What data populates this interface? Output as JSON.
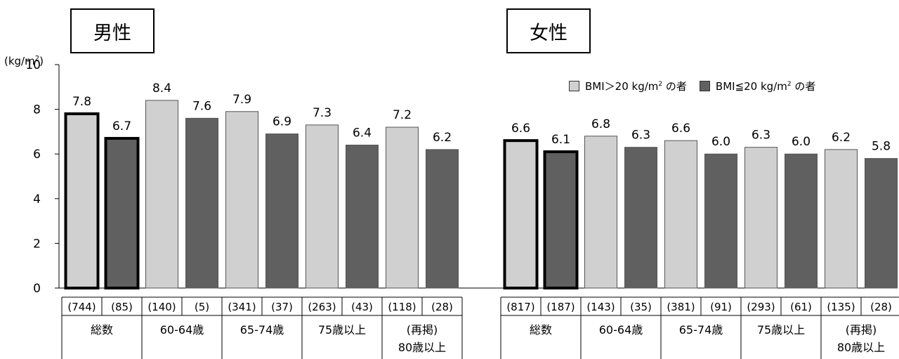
{
  "chart_data": {
    "type": "bar",
    "unit_label_main": "(kg/m",
    "unit_label_sup": "2",
    "unit_label_end": ")",
    "ylim": [
      0,
      10
    ],
    "yticks": [
      0,
      2,
      4,
      6,
      8,
      10
    ],
    "grid": false,
    "legend_position": "top-right",
    "legend": [
      {
        "name_main": "BMI＞20 kg/m",
        "name_sup": "2",
        "name_end": " の者",
        "color": "#d0d0d0"
      },
      {
        "name_main": "BMI≦20 kg/m",
        "name_sup": "2",
        "name_end": " の者",
        "color": "#606060"
      }
    ],
    "panels": [
      {
        "title": "男性",
        "groups": [
          {
            "label": [
              "総数"
            ],
            "highlight": true,
            "bars": [
              {
                "value": 7.8,
                "label": "7.8",
                "n": "(744)"
              },
              {
                "value": 6.7,
                "label": "6.7",
                "n": "(85)"
              }
            ]
          },
          {
            "label": [
              "60-64歳"
            ],
            "highlight": false,
            "bars": [
              {
                "value": 8.4,
                "label": "8.4",
                "n": "(140)"
              },
              {
                "value": 7.6,
                "label": "7.6",
                "n": "(5)"
              }
            ]
          },
          {
            "label": [
              "65-74歳"
            ],
            "highlight": false,
            "bars": [
              {
                "value": 7.9,
                "label": "7.9",
                "n": "(341)"
              },
              {
                "value": 6.9,
                "label": "6.9",
                "n": "(37)"
              }
            ]
          },
          {
            "label": [
              "75歳以上"
            ],
            "highlight": false,
            "bars": [
              {
                "value": 7.3,
                "label": "7.3",
                "n": "(263)"
              },
              {
                "value": 6.4,
                "label": "6.4",
                "n": "(43)"
              }
            ]
          },
          {
            "label": [
              "(再掲)",
              "80歳以上"
            ],
            "highlight": false,
            "bars": [
              {
                "value": 7.2,
                "label": "7.2",
                "n": "(118)"
              },
              {
                "value": 6.2,
                "label": "6.2",
                "n": "(28)"
              }
            ]
          }
        ]
      },
      {
        "title": "女性",
        "groups": [
          {
            "label": [
              "総数"
            ],
            "highlight": true,
            "bars": [
              {
                "value": 6.6,
                "label": "6.6",
                "n": "(817)"
              },
              {
                "value": 6.1,
                "label": "6.1",
                "n": "(187)"
              }
            ]
          },
          {
            "label": [
              "60-64歳"
            ],
            "highlight": false,
            "bars": [
              {
                "value": 6.8,
                "label": "6.8",
                "n": "(143)"
              },
              {
                "value": 6.3,
                "label": "6.3",
                "n": "(35)"
              }
            ]
          },
          {
            "label": [
              "65-74歳"
            ],
            "highlight": false,
            "bars": [
              {
                "value": 6.6,
                "label": "6.6",
                "n": "(381)"
              },
              {
                "value": 6.0,
                "label": "6.0",
                "n": "(91)"
              }
            ]
          },
          {
            "label": [
              "75歳以上"
            ],
            "highlight": false,
            "bars": [
              {
                "value": 6.3,
                "label": "6.3",
                "n": "(293)"
              },
              {
                "value": 6.0,
                "label": "6.0",
                "n": "(61)"
              }
            ]
          },
          {
            "label": [
              "(再掲)",
              "80歳以上"
            ],
            "highlight": false,
            "bars": [
              {
                "value": 6.2,
                "label": "6.2",
                "n": "(135)"
              },
              {
                "value": 5.8,
                "label": "5.8",
                "n": "(28)"
              }
            ]
          }
        ]
      }
    ]
  }
}
